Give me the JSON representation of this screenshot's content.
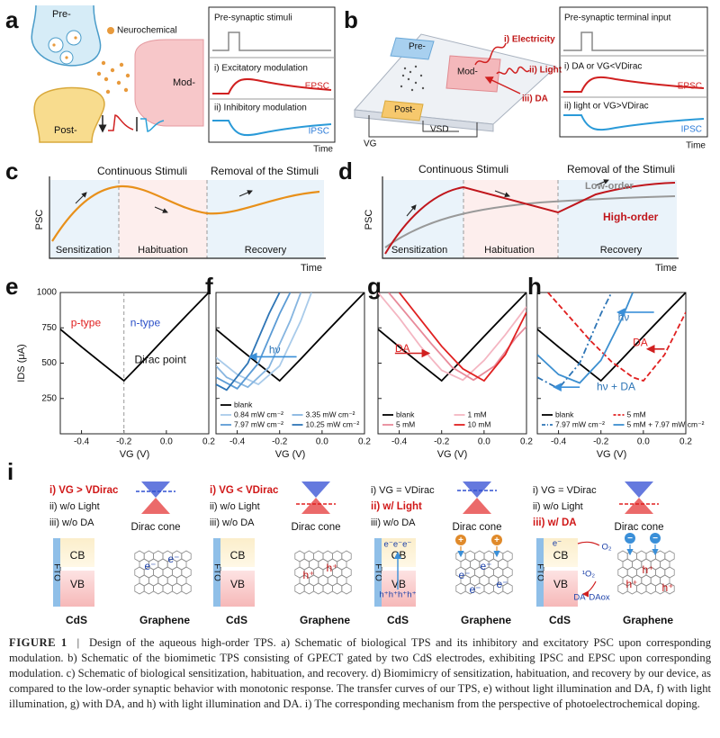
{
  "panel_labels": [
    "a",
    "b",
    "c",
    "d",
    "e",
    "f",
    "g",
    "h",
    "i"
  ],
  "a": {
    "pre": "Pre-",
    "neurochemical": "Neurochemical",
    "mod": "Mod-",
    "post": "Post-",
    "stimuli": "Pre-synaptic stimuli",
    "excitatory": "i) Excitatory modulation",
    "epsc": "EPSC",
    "inhibitory": "ii) Inhibitory modulation",
    "ipsc": "IPSC",
    "time": "Time"
  },
  "b": {
    "pre": "Pre-",
    "mod": "Mod-",
    "post": "Post-",
    "electricity": "i) Electricity",
    "light": "ii) Light",
    "da": "iii) DA",
    "vg": "VG",
    "vsd": "VSD",
    "input": "Pre-synaptic terminal input",
    "cond1": "i) DA or VG<VDirac",
    "epsc": "EPSC",
    "cond2": "ii) light or VG>VDirac",
    "ipsc": "IPSC",
    "time": "Time"
  },
  "c": {
    "continuous": "Continuous Stimuli",
    "removal": "Removal of the Stimuli",
    "ylabel": "PSC",
    "phases": [
      "Sensitization",
      "Habituation",
      "Recovery"
    ],
    "time": "Time"
  },
  "d": {
    "continuous": "Continuous Stimuli",
    "removal": "Removal of the Stimuli",
    "ylabel": "PSC",
    "low": "Low-order",
    "high": "High-order",
    "phases": [
      "Sensitization",
      "Habituation",
      "Recovery"
    ],
    "time": "Time"
  },
  "chart_data": [
    {
      "type": "line",
      "xlabel": "VG (V)",
      "ylabel": "IDS (μA)",
      "xlim": [
        -0.5,
        0.2
      ],
      "xticks": [
        -0.4,
        -0.2,
        {
          "value": 0,
          "label": "0.0"
        },
        0.2
      ],
      "ylim": [
        0,
        1000
      ],
      "yticks": [
        250,
        500,
        750,
        1000
      ],
      "vline": -0.2,
      "annotations": [
        "p-type",
        "n-type",
        "Dirac point"
      ],
      "series": [
        {
          "color": "#000000",
          "x": [
            -0.5,
            -0.4,
            -0.3,
            -0.2,
            -0.1,
            0,
            0.1,
            0.2
          ],
          "values": [
            740,
            615,
            495,
            375,
            530,
            690,
            845,
            1000
          ]
        }
      ]
    },
    {
      "type": "line",
      "xlabel": "VG (V)",
      "xlim": [
        -0.5,
        0.2
      ],
      "xticks": [
        -0.4,
        -0.2,
        {
          "value": 0,
          "label": "0.0"
        },
        0.2
      ],
      "ylim": [
        0,
        1000
      ],
      "yticks": [
        250,
        500,
        750,
        1000
      ],
      "annotations": [
        "hν"
      ],
      "series": [
        {
          "name": "blank",
          "color": "#000000",
          "x": [
            -0.5,
            -0.4,
            -0.3,
            -0.2,
            -0.1,
            0,
            0.1,
            0.2
          ],
          "values": [
            740,
            615,
            495,
            375,
            530,
            690,
            845,
            1000
          ]
        },
        {
          "name": "0.84 mW cm⁻²",
          "color": "#a9cbea",
          "x": [
            -0.5,
            -0.4,
            -0.3,
            -0.2,
            -0.1,
            -0.05
          ],
          "values": [
            540,
            420,
            350,
            480,
            800,
            1000
          ]
        },
        {
          "name": "3.35 mW cm⁻²",
          "color": "#86b5e0",
          "x": [
            -0.5,
            -0.45,
            -0.35,
            -0.25,
            -0.15,
            -0.1
          ],
          "values": [
            480,
            400,
            330,
            470,
            800,
            1000
          ]
        },
        {
          "name": "7.97 mW cm⁻²",
          "color": "#5b9bd5",
          "x": [
            -0.5,
            -0.4,
            -0.3,
            -0.2,
            -0.15
          ],
          "values": [
            400,
            320,
            500,
            850,
            1000
          ]
        },
        {
          "name": "10.25 mW cm⁻²",
          "color": "#2e75b6",
          "x": [
            -0.5,
            -0.45,
            -0.35,
            -0.25,
            -0.2
          ],
          "values": [
            350,
            310,
            500,
            850,
            1000
          ]
        }
      ]
    },
    {
      "type": "line",
      "xlabel": "VG (V)",
      "xlim": [
        -0.5,
        0.2
      ],
      "xticks": [
        -0.4,
        -0.2,
        {
          "value": 0,
          "label": "0.0"
        },
        0.2
      ],
      "ylim": [
        0,
        1000
      ],
      "yticks": [
        250,
        500,
        750,
        1000
      ],
      "annotations": [
        "DA"
      ],
      "series": [
        {
          "name": "blank",
          "color": "#000000",
          "x": [
            -0.5,
            -0.4,
            -0.3,
            -0.2,
            -0.1,
            0,
            0.1,
            0.2
          ],
          "values": [
            740,
            615,
            495,
            375,
            530,
            690,
            845,
            1000
          ]
        },
        {
          "name": "1 mM",
          "color": "#f4b6c2",
          "x": [
            -0.5,
            -0.4,
            -0.3,
            -0.2,
            -0.1,
            0,
            0.1,
            0.2
          ],
          "values": [
            1000,
            820,
            620,
            450,
            380,
            520,
            700,
            900
          ]
        },
        {
          "name": "5 mM",
          "color": "#e88a9a",
          "x": [
            -0.45,
            -0.35,
            -0.25,
            -0.15,
            -0.05,
            0.05,
            0.15,
            0.2
          ],
          "values": [
            1000,
            820,
            640,
            470,
            380,
            480,
            680,
            760
          ]
        },
        {
          "name": "10 mM",
          "color": "#e02020",
          "x": [
            -0.4,
            -0.3,
            -0.2,
            -0.1,
            0,
            0.1,
            0.2
          ],
          "values": [
            1000,
            810,
            620,
            460,
            375,
            560,
            860
          ]
        }
      ]
    },
    {
      "type": "line",
      "xlabel": "VG (V)",
      "xlim": [
        -0.5,
        0.2
      ],
      "xticks": [
        -0.4,
        -0.2,
        {
          "value": 0,
          "label": "0.0"
        },
        0.2
      ],
      "ylim": [
        0,
        1000
      ],
      "yticks": [
        250,
        500,
        750,
        1000
      ],
      "annotations": [
        "hν",
        "DA",
        "hν + DA"
      ],
      "series": [
        {
          "name": "blank",
          "color": "#000000",
          "x": [
            -0.5,
            -0.4,
            -0.3,
            -0.2,
            -0.1,
            0,
            0.1,
            0.2
          ],
          "values": [
            740,
            615,
            495,
            375,
            530,
            690,
            845,
            1000
          ]
        },
        {
          "name": "5 mM",
          "color": "#e02020",
          "dash": "dashed",
          "x": [
            -0.45,
            -0.35,
            -0.25,
            -0.15,
            -0.05,
            0,
            0.1,
            0.2
          ],
          "values": [
            1000,
            830,
            660,
            510,
            400,
            375,
            560,
            860
          ]
        },
        {
          "name": "7.97 mW cm⁻²",
          "color": "#2e75b6",
          "dash": "dashdot",
          "x": [
            -0.5,
            -0.4,
            -0.3,
            -0.2,
            -0.15
          ],
          "values": [
            400,
            320,
            500,
            850,
            1000
          ]
        },
        {
          "name": "5 mM + 7.97 mW cm⁻²",
          "color": "#3c8fd0",
          "x": [
            -0.5,
            -0.4,
            -0.3,
            -0.2,
            -0.1,
            -0.05
          ],
          "values": [
            560,
            420,
            360,
            520,
            820,
            1000
          ]
        }
      ]
    }
  ],
  "i": {
    "columns": [
      {
        "lines": [
          "i)  VG > VDirac",
          "ii)  w/o Light",
          "iii)  w/o DA"
        ],
        "highlight": 0,
        "cone": "Dirac cone",
        "graphene_carriers": [
          "e⁻",
          "e⁻"
        ]
      },
      {
        "lines": [
          "i)  VG < VDirac",
          "ii)  w/o Light",
          "iii)  w/o DA"
        ],
        "highlight": 0,
        "cone": "Dirac cone",
        "graphene_carriers": [
          "h⁺",
          "h⁺"
        ]
      },
      {
        "lines": [
          "i)  VG = VDirac",
          "ii)  w/ Light",
          "iii)  w/o DA"
        ],
        "highlight": 1,
        "cone": "Dirac cone",
        "cds_carriers": [
          "e⁻e⁻e⁻",
          "h⁺h⁺h⁺h⁺"
        ],
        "graphene_carriers": [
          "e⁻",
          "e⁻",
          "e⁻",
          "e⁻"
        ]
      },
      {
        "lines": [
          "i)  VG = VDirac",
          "ii)  w/o Light",
          "iii)  w/ DA"
        ],
        "highlight": 2,
        "cone": "Dirac cone",
        "cds_carriers": [
          "e⁻",
          "O₂",
          "¹O₂",
          "DA",
          "DAox"
        ],
        "graphene_carriers": [
          "h⁺",
          "h⁺",
          "h⁺"
        ]
      }
    ],
    "cb": "CB",
    "vb": "VB",
    "fto": "FTO",
    "cds": "CdS",
    "graphene": "Graphene"
  },
  "caption": {
    "label": "FIGURE 1",
    "divider": "|",
    "text": "Design of the aqueous high-order TPS. a) Schematic of biological TPS and its inhibitory and excitatory PSC upon corresponding modulation. b) Schematic of the biomimetic TPS consisting of GPECT gated by two CdS electrodes, exhibiting IPSC and EPSC upon corresponding modulation. c) Schematic of biological sensitization, habituation, and recovery. d) Biomimicry of sensitization, habituation, and recovery by our device, as compared to the low-order synaptic behavior with monotonic response. The transfer curves of our TPS, e) without light illumination and DA, f) with light illumination, g) with DA, and h) with light illumination and DA. i) The corresponding mechanism from the perspective of photoelectrochemical doping."
  }
}
